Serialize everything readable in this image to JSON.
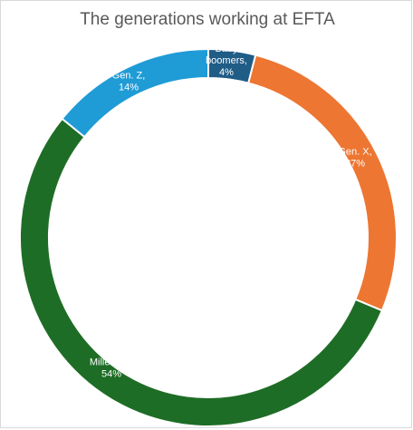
{
  "chart_data": {
    "type": "pie",
    "title": "The generations working at EFTA",
    "hole": "donut",
    "slices": [
      {
        "label_lines": [
          "Baby",
          "boomers,",
          "4%"
        ],
        "name": "Baby boomers",
        "value": 4,
        "color": "#1f5c86"
      },
      {
        "label_lines": [
          "Gen. X,",
          "27%"
        ],
        "name": "Gen. X",
        "value": 27,
        "color": "#ed7632"
      },
      {
        "label_lines": [
          "Millenials,",
          "54%"
        ],
        "name": "Millenials",
        "value": 54,
        "color": "#1e6d26"
      },
      {
        "label_lines": [
          "Gen. Z,",
          "14%"
        ],
        "name": "Gen. Z",
        "value": 14,
        "color": "#1f9bd6"
      }
    ],
    "legend": "none"
  }
}
